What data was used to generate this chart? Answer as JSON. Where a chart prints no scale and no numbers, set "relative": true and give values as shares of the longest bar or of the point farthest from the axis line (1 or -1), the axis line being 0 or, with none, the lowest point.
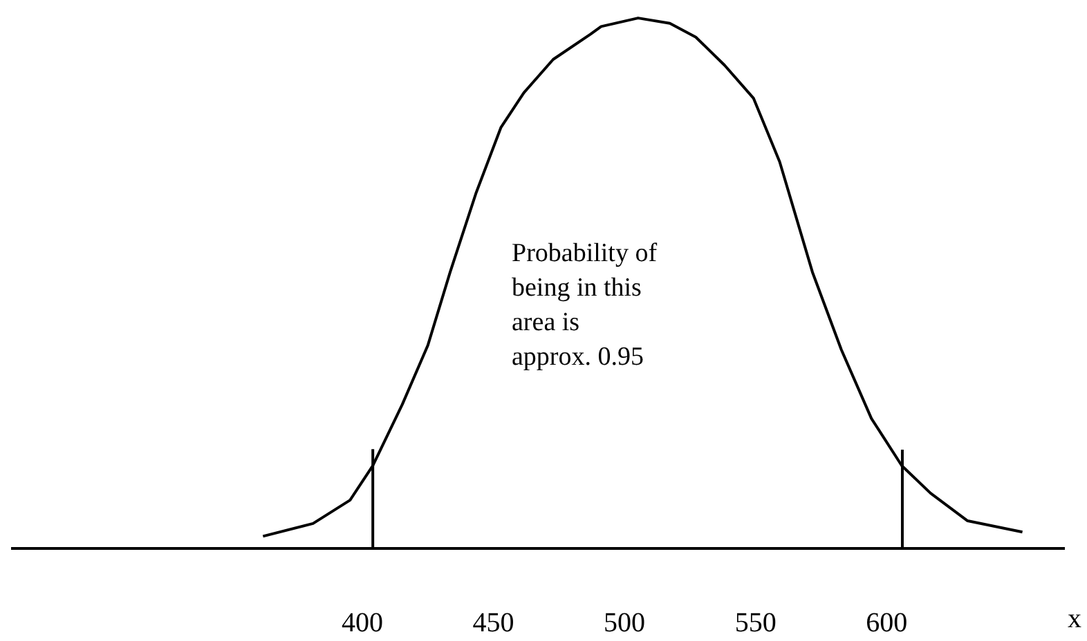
{
  "chart_data": {
    "type": "line",
    "relative": true,
    "xlabel": "x",
    "xlim": [
      266,
      668
    ],
    "xticks": [
      400,
      450,
      500,
      550,
      600
    ],
    "x": [
      362.1,
      381.2,
      395.3,
      404.0,
      415.2,
      425.0,
      433.5,
      443.3,
      452.9,
      461.6,
      472.8,
      486.9,
      491.1,
      505.2,
      517.3,
      527.2,
      538.2,
      549.2,
      559.2,
      571.7,
      582.7,
      594.2,
      605.8,
      616.8,
      630.9,
      651.8
    ],
    "series": [
      {
        "color": "#000000",
        "values": [
          0.023,
          0.047,
          0.091,
          0.156,
          0.271,
          0.383,
          0.521,
          0.669,
          0.794,
          0.859,
          0.922,
          0.969,
          0.984,
          1,
          0.99,
          0.964,
          0.911,
          0.849,
          0.729,
          0.521,
          0.375,
          0.245,
          0.156,
          0.104,
          0.052,
          0.031
        ]
      }
    ],
    "ref_lines": [
      {
        "axis": "x",
        "value": 404
      },
      {
        "axis": "x",
        "value": 606
      }
    ],
    "annotations": [
      "Probability of being in this area is approx. 0.95"
    ],
    "marker": "none",
    "line_style": "solid"
  }
}
